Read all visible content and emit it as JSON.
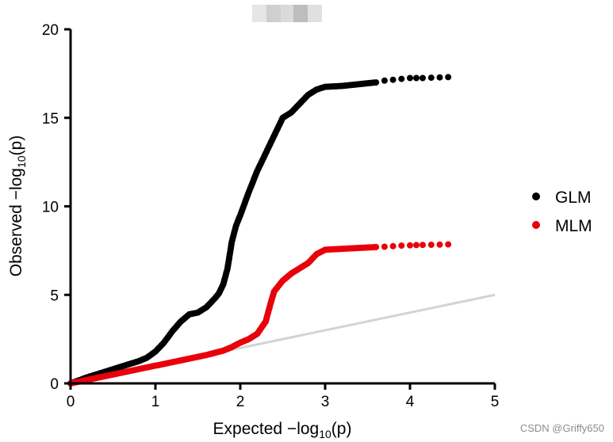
{
  "chart_data": {
    "type": "scatter",
    "xlabel": "Expected −log",
    "xlabel_sub": "10",
    "xlabel_tail": "(p)",
    "ylabel": "Observed −log",
    "ylabel_sub": "10",
    "ylabel_tail": "(p)",
    "xlim": [
      0,
      5
    ],
    "ylim": [
      0,
      20
    ],
    "xticks": [
      0,
      1,
      2,
      3,
      4,
      5
    ],
    "yticks": [
      0,
      5,
      10,
      15,
      20
    ],
    "grid": false,
    "legend_position": "right",
    "reference_line": {
      "from": [
        0,
        0
      ],
      "to": [
        5,
        5
      ],
      "color": "#d3d3d3"
    },
    "series": [
      {
        "name": "GLM",
        "color": "#000000",
        "x": [
          0.0,
          0.2,
          0.4,
          0.6,
          0.8,
          0.9,
          1.0,
          1.1,
          1.2,
          1.3,
          1.4,
          1.5,
          1.6,
          1.7,
          1.75,
          1.8,
          1.85,
          1.9,
          1.95,
          2.0,
          2.1,
          2.2,
          2.3,
          2.4,
          2.5,
          2.6,
          2.7,
          2.8,
          2.9,
          3.0,
          3.2,
          3.4,
          3.6,
          3.7,
          3.8,
          3.9,
          4.0,
          4.15,
          4.45
        ],
        "y": [
          0.0,
          0.35,
          0.65,
          0.95,
          1.25,
          1.45,
          1.8,
          2.3,
          2.95,
          3.5,
          3.9,
          4.0,
          4.3,
          4.8,
          5.1,
          5.6,
          6.5,
          8.0,
          8.9,
          9.5,
          10.8,
          12.0,
          13.0,
          14.0,
          15.0,
          15.3,
          15.8,
          16.3,
          16.6,
          16.75,
          16.8,
          16.9,
          17.0,
          17.1,
          17.15,
          17.2,
          17.25,
          17.25,
          17.3
        ]
      },
      {
        "name": "MLM",
        "color": "#e8000b",
        "x": [
          0.0,
          0.2,
          0.4,
          0.6,
          0.8,
          1.0,
          1.2,
          1.4,
          1.6,
          1.8,
          1.9,
          2.0,
          2.1,
          2.2,
          2.3,
          2.35,
          2.4,
          2.45,
          2.5,
          2.6,
          2.7,
          2.8,
          2.9,
          3.0,
          3.2,
          3.4,
          3.6,
          3.7,
          3.8,
          3.9,
          4.0,
          4.15,
          4.45
        ],
        "y": [
          0.0,
          0.2,
          0.4,
          0.6,
          0.8,
          1.0,
          1.2,
          1.4,
          1.6,
          1.85,
          2.05,
          2.3,
          2.5,
          2.8,
          3.5,
          4.4,
          5.2,
          5.5,
          5.8,
          6.2,
          6.5,
          6.8,
          7.3,
          7.55,
          7.6,
          7.65,
          7.7,
          7.72,
          7.75,
          7.78,
          7.8,
          7.82,
          7.85
        ]
      }
    ]
  },
  "watermark": "CSDN @Griffy650"
}
